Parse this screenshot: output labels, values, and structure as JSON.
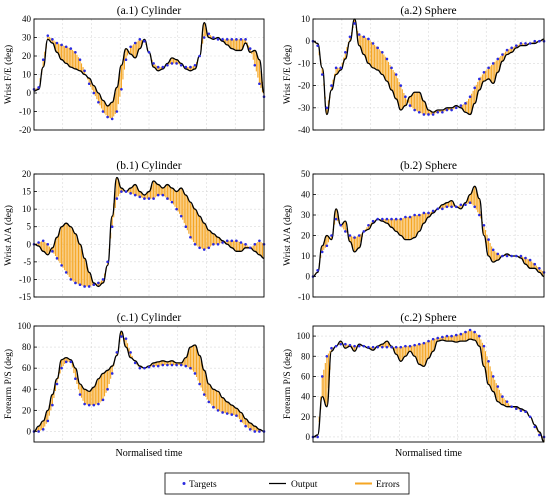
{
  "colors": {
    "target": "#2a2ae0",
    "output": "#000000",
    "error": "#f5a623",
    "grid": "#d9d9d9"
  },
  "legend": {
    "targets": "Targets",
    "output": "Output",
    "errors": "Errors"
  },
  "chart_data": [
    {
      "type": "line",
      "title": "(a.1) Cylinder",
      "ylabel": "Wrist F/E (deg)",
      "xlabel": "",
      "ylim": [
        -20,
        40
      ],
      "yticks": [
        -20,
        -10,
        0,
        10,
        20,
        30,
        40
      ],
      "grid": true,
      "x": [
        0,
        0.02,
        0.04,
        0.06,
        0.08,
        0.1,
        0.12,
        0.14,
        0.16,
        0.18,
        0.2,
        0.22,
        0.24,
        0.26,
        0.28,
        0.3,
        0.32,
        0.34,
        0.36,
        0.38,
        0.4,
        0.42,
        0.44,
        0.46,
        0.48,
        0.5,
        0.52,
        0.54,
        0.56,
        0.58,
        0.6,
        0.62,
        0.64,
        0.66,
        0.68,
        0.7,
        0.72,
        0.74,
        0.76,
        0.78,
        0.8,
        0.82,
        0.84,
        0.86,
        0.88,
        0.9,
        0.92,
        0.94,
        0.96,
        0.98,
        1.0
      ],
      "series": [
        {
          "name": "Targets",
          "values": [
            2,
            3,
            18,
            31,
            29,
            27,
            26,
            25,
            24,
            22,
            18,
            12,
            5,
            0,
            -5,
            -10,
            -13,
            -14,
            -10,
            2,
            18,
            25,
            27,
            29,
            28,
            22,
            16,
            14,
            14,
            15,
            16,
            16,
            15,
            14,
            14,
            15,
            20,
            30,
            32,
            30,
            29,
            29,
            29,
            29,
            29,
            29,
            29,
            24,
            15,
            5,
            -2
          ]
        },
        {
          "name": "Output",
          "values": [
            1,
            2,
            14,
            29,
            27,
            22,
            18,
            16,
            14,
            13,
            12,
            10,
            8,
            4,
            0,
            -4,
            -7,
            -5,
            3,
            15,
            24,
            21,
            19,
            24,
            29,
            22,
            14,
            12,
            13,
            16,
            19,
            18,
            16,
            13,
            12,
            13,
            20,
            38,
            30,
            29,
            30,
            28,
            26,
            24,
            23,
            23,
            27,
            22,
            23,
            18,
            0
          ]
        }
      ]
    },
    {
      "type": "line",
      "title": "(a.2) Sphere",
      "ylabel": "Wrist F/E (deg)",
      "xlabel": "",
      "ylim": [
        -40,
        10
      ],
      "yticks": [
        -40,
        -30,
        -20,
        -10,
        0,
        10
      ],
      "grid": true,
      "x": [
        0,
        0.02,
        0.04,
        0.06,
        0.08,
        0.1,
        0.12,
        0.14,
        0.16,
        0.18,
        0.2,
        0.22,
        0.24,
        0.26,
        0.28,
        0.3,
        0.32,
        0.34,
        0.36,
        0.38,
        0.4,
        0.42,
        0.44,
        0.46,
        0.48,
        0.5,
        0.52,
        0.54,
        0.56,
        0.58,
        0.6,
        0.62,
        0.64,
        0.66,
        0.68,
        0.7,
        0.72,
        0.74,
        0.76,
        0.78,
        0.8,
        0.82,
        0.84,
        0.86,
        0.88,
        0.9,
        0.92,
        0.94,
        0.96,
        0.98,
        1.0
      ],
      "series": [
        {
          "name": "Targets",
          "values": [
            0,
            -2,
            -15,
            -30,
            -20,
            -12,
            -12,
            -5,
            2,
            8,
            3,
            2,
            1,
            -1,
            -3,
            -5,
            -8,
            -12,
            -15,
            -20,
            -25,
            -29,
            -31,
            -32,
            -33,
            -33,
            -33,
            -32,
            -32,
            -31,
            -31,
            -30,
            -29,
            -28,
            -25,
            -21,
            -17,
            -14,
            -12,
            -10,
            -8,
            -6,
            -4,
            -3,
            -2,
            -1,
            -1,
            -1,
            0,
            0,
            0
          ]
        },
        {
          "name": "Output",
          "values": [
            0,
            -1,
            -12,
            -33,
            -22,
            -15,
            -13,
            -8,
            0,
            10,
            -2,
            -6,
            -10,
            -12,
            -13,
            -15,
            -18,
            -22,
            -26,
            -31,
            -29,
            -25,
            -23,
            -23,
            -27,
            -31,
            -32,
            -31,
            -31,
            -30,
            -30,
            -29,
            -30,
            -32,
            -33,
            -28,
            -22,
            -18,
            -17,
            -19,
            -14,
            -9,
            -6,
            -5,
            -3,
            -2,
            -2,
            -1,
            -1,
            0,
            1
          ]
        }
      ]
    },
    {
      "type": "line",
      "title": "(b.1) Cylinder",
      "ylabel": "Wrist A/A (deg)",
      "xlabel": "",
      "ylim": [
        -15,
        20
      ],
      "yticks": [
        -15,
        -10,
        -5,
        0,
        5,
        10,
        15,
        20
      ],
      "grid": true,
      "x": [
        0,
        0.02,
        0.04,
        0.06,
        0.08,
        0.1,
        0.12,
        0.14,
        0.16,
        0.18,
        0.2,
        0.22,
        0.24,
        0.26,
        0.28,
        0.3,
        0.32,
        0.34,
        0.36,
        0.38,
        0.4,
        0.42,
        0.44,
        0.46,
        0.48,
        0.5,
        0.52,
        0.54,
        0.56,
        0.58,
        0.6,
        0.62,
        0.64,
        0.66,
        0.68,
        0.7,
        0.72,
        0.74,
        0.76,
        0.78,
        0.8,
        0.82,
        0.84,
        0.86,
        0.88,
        0.9,
        0.92,
        0.94,
        0.96,
        0.98,
        1.0
      ],
      "series": [
        {
          "name": "Targets",
          "values": [
            0,
            0.5,
            1,
            0,
            -2,
            -4,
            -6,
            -8,
            -10,
            -11,
            -11.5,
            -12,
            -12,
            -11.5,
            -11,
            -10,
            -5,
            5,
            13,
            15,
            15,
            14.5,
            14,
            13.5,
            13,
            13,
            13,
            14,
            14,
            13,
            12,
            10,
            8,
            5,
            2,
            0,
            -1,
            -1.5,
            -1,
            0,
            0,
            0.5,
            1,
            1,
            1,
            0.5,
            0,
            -1,
            0,
            1,
            0
          ]
        },
        {
          "name": "Output",
          "values": [
            0,
            -0.5,
            -2,
            -3,
            -1,
            2,
            5,
            6,
            5,
            3,
            0,
            -4,
            -8,
            -11,
            -12,
            -11,
            -6,
            8,
            19,
            16,
            15,
            16,
            17,
            15,
            14,
            15,
            18,
            17,
            16,
            17,
            16,
            15,
            16,
            14,
            12,
            10,
            8,
            6,
            4,
            3,
            2,
            1,
            0,
            -1,
            -2,
            -2,
            -1,
            -1,
            -2,
            -3,
            -4
          ]
        }
      ]
    },
    {
      "type": "line",
      "title": "(b.2) Sphere",
      "ylabel": "Wrist A/A (deg)",
      "xlabel": "",
      "ylim": [
        -10,
        50
      ],
      "yticks": [
        -10,
        0,
        10,
        20,
        30,
        40,
        50
      ],
      "grid": true,
      "x": [
        0,
        0.02,
        0.04,
        0.06,
        0.08,
        0.1,
        0.12,
        0.14,
        0.16,
        0.18,
        0.2,
        0.22,
        0.24,
        0.26,
        0.28,
        0.3,
        0.32,
        0.34,
        0.36,
        0.38,
        0.4,
        0.42,
        0.44,
        0.46,
        0.48,
        0.5,
        0.52,
        0.54,
        0.56,
        0.58,
        0.6,
        0.62,
        0.64,
        0.66,
        0.68,
        0.7,
        0.72,
        0.74,
        0.76,
        0.78,
        0.8,
        0.82,
        0.84,
        0.86,
        0.88,
        0.9,
        0.92,
        0.94,
        0.96,
        0.98,
        1.0
      ],
      "series": [
        {
          "name": "Targets",
          "values": [
            0,
            3,
            12,
            15,
            20,
            28,
            25,
            22,
            20,
            19,
            20,
            22,
            25,
            27,
            28,
            28,
            28,
            28,
            28,
            28,
            29,
            29,
            30,
            30,
            31,
            31,
            32,
            33,
            33,
            34,
            34,
            34,
            35,
            35,
            36,
            34,
            30,
            25,
            18,
            13,
            11,
            10,
            10,
            10,
            10,
            10,
            9,
            8,
            6,
            4,
            2
          ]
        },
        {
          "name": "Output",
          "values": [
            0,
            2,
            15,
            20,
            18,
            33,
            25,
            27,
            17,
            12,
            14,
            22,
            23,
            26,
            28,
            27,
            26,
            24,
            22,
            20,
            18,
            18,
            19,
            22,
            26,
            29,
            31,
            33,
            35,
            36,
            37,
            34,
            33,
            36,
            40,
            44,
            38,
            20,
            10,
            7,
            8,
            10,
            11,
            10,
            10,
            9,
            6,
            4,
            4,
            2,
            0
          ]
        }
      ]
    },
    {
      "type": "line",
      "title": "(c.1) Cylinder",
      "ylabel": "Forearm P/S (deg)",
      "xlabel": "Normalised time",
      "ylim": [
        -10,
        100
      ],
      "yticks": [
        0,
        20,
        40,
        60,
        80,
        100
      ],
      "grid": true,
      "x": [
        0,
        0.02,
        0.04,
        0.06,
        0.08,
        0.1,
        0.12,
        0.14,
        0.16,
        0.18,
        0.2,
        0.22,
        0.24,
        0.26,
        0.28,
        0.3,
        0.32,
        0.34,
        0.36,
        0.38,
        0.4,
        0.42,
        0.44,
        0.46,
        0.48,
        0.5,
        0.52,
        0.54,
        0.56,
        0.58,
        0.6,
        0.62,
        0.64,
        0.66,
        0.68,
        0.7,
        0.72,
        0.74,
        0.76,
        0.78,
        0.8,
        0.82,
        0.84,
        0.86,
        0.88,
        0.9,
        0.92,
        0.94,
        0.96,
        0.98,
        1.0
      ],
      "series": [
        {
          "name": "Targets",
          "values": [
            0,
            0,
            2,
            10,
            25,
            45,
            60,
            66,
            66,
            50,
            35,
            26,
            25,
            25,
            26,
            30,
            40,
            55,
            75,
            90,
            88,
            75,
            65,
            60,
            60,
            61,
            62,
            62,
            63,
            63,
            63,
            63,
            63,
            62,
            60,
            55,
            45,
            35,
            28,
            23,
            20,
            18,
            17,
            16,
            15,
            10,
            5,
            2,
            0,
            0,
            0
          ]
        },
        {
          "name": "Output",
          "values": [
            0,
            5,
            10,
            20,
            35,
            50,
            68,
            70,
            68,
            60,
            45,
            40,
            38,
            42,
            50,
            55,
            58,
            62,
            72,
            95,
            80,
            70,
            67,
            62,
            60,
            62,
            65,
            66,
            67,
            66,
            67,
            65,
            65,
            70,
            80,
            82,
            72,
            58,
            45,
            40,
            38,
            32,
            28,
            25,
            22,
            18,
            12,
            8,
            5,
            2,
            0
          ]
        }
      ]
    },
    {
      "type": "line",
      "title": "(c.2) Sphere",
      "ylabel": "Forearm P/S (deg)",
      "xlabel": "Normalised time",
      "ylim": [
        -5,
        110
      ],
      "yticks": [
        0,
        20,
        40,
        60,
        80,
        100
      ],
      "grid": true,
      "x": [
        0,
        0.02,
        0.04,
        0.06,
        0.08,
        0.1,
        0.12,
        0.14,
        0.16,
        0.18,
        0.2,
        0.22,
        0.24,
        0.26,
        0.28,
        0.3,
        0.32,
        0.34,
        0.36,
        0.38,
        0.4,
        0.42,
        0.44,
        0.46,
        0.48,
        0.5,
        0.52,
        0.54,
        0.56,
        0.58,
        0.6,
        0.62,
        0.64,
        0.66,
        0.68,
        0.7,
        0.72,
        0.74,
        0.76,
        0.78,
        0.8,
        0.82,
        0.84,
        0.86,
        0.88,
        0.9,
        0.92,
        0.94,
        0.96,
        0.98,
        1.0
      ],
      "series": [
        {
          "name": "Targets",
          "values": [
            0,
            0,
            60,
            80,
            88,
            90,
            92,
            92,
            91,
            90,
            90,
            90,
            89,
            89,
            89,
            89,
            89,
            89,
            89,
            89,
            90,
            90,
            91,
            92,
            93,
            95,
            97,
            98,
            99,
            100,
            100,
            101,
            102,
            104,
            106,
            104,
            100,
            90,
            75,
            60,
            50,
            40,
            35,
            30,
            28,
            26,
            25,
            20,
            10,
            2,
            0
          ]
        },
        {
          "name": "Output",
          "values": [
            0,
            2,
            40,
            30,
            85,
            90,
            95,
            88,
            90,
            85,
            92,
            90,
            88,
            86,
            90,
            92,
            95,
            90,
            82,
            75,
            80,
            85,
            80,
            72,
            70,
            78,
            85,
            95,
            96,
            95,
            95,
            94,
            95,
            95,
            97,
            96,
            90,
            70,
            52,
            45,
            35,
            32,
            30,
            30,
            30,
            28,
            26,
            20,
            12,
            5,
            -5
          ]
        }
      ]
    }
  ]
}
